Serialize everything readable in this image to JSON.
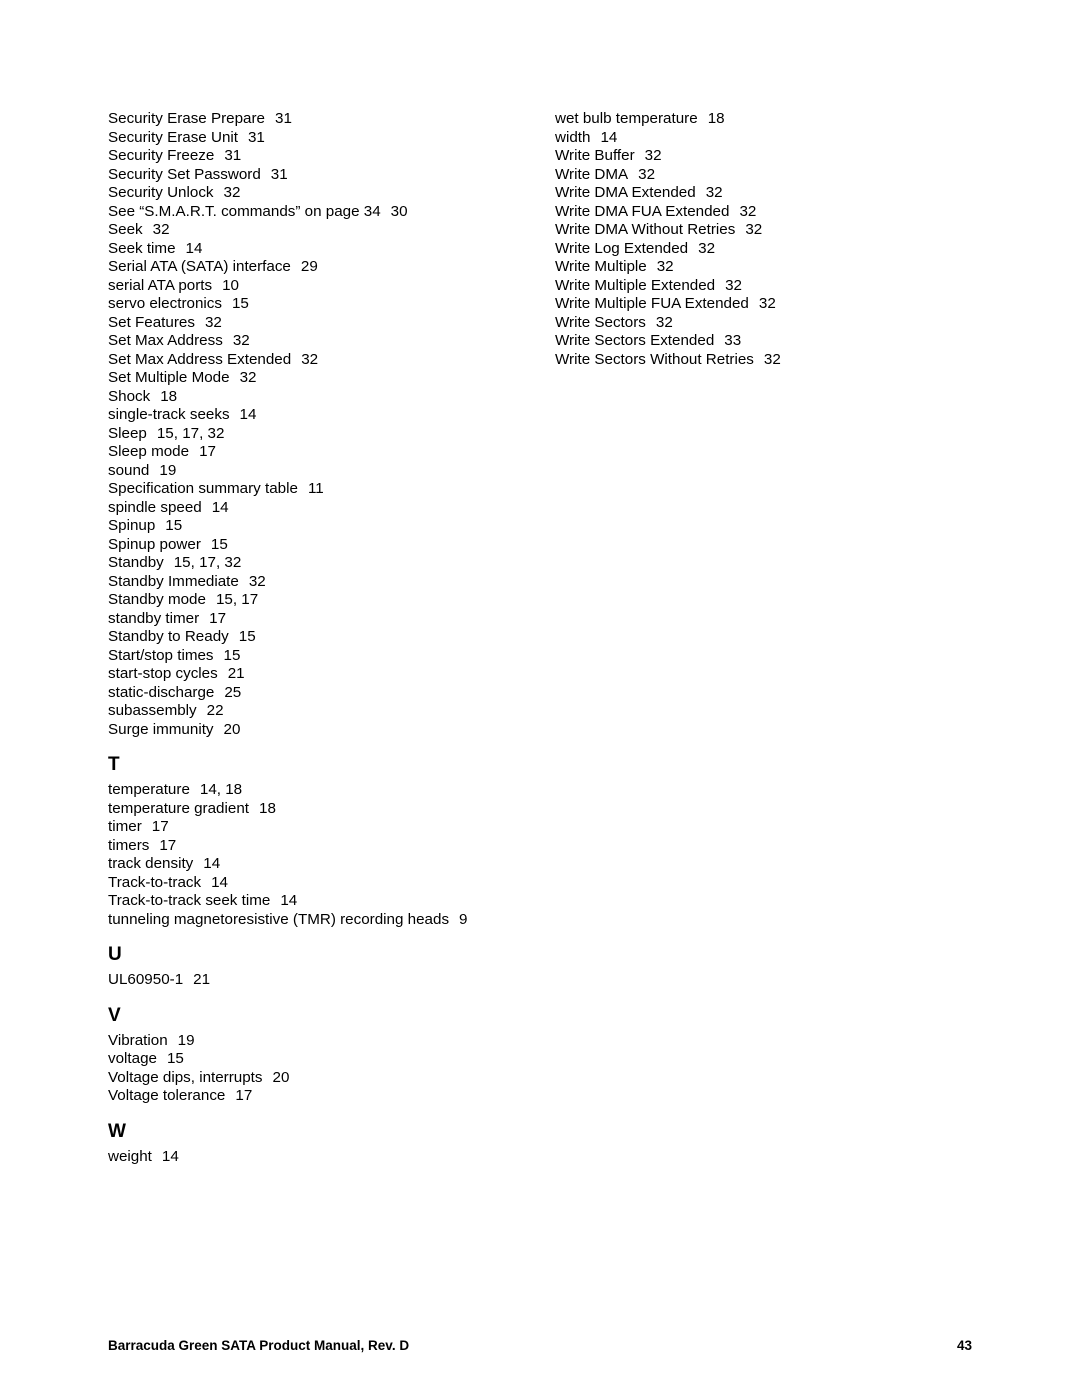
{
  "col1": {
    "s_entries": [
      {
        "term": "Security Erase Prepare",
        "pages": "31"
      },
      {
        "term": "Security Erase Unit",
        "pages": "31"
      },
      {
        "term": "Security Freeze",
        "pages": "31"
      },
      {
        "term": "Security Set Password",
        "pages": "31"
      },
      {
        "term": "Security Unlock",
        "pages": "32"
      },
      {
        "term": "See “S.M.A.R.T. commands” on page 34",
        "pages": "30"
      },
      {
        "term": "Seek",
        "pages": "32"
      },
      {
        "term": "Seek time",
        "pages": "14"
      },
      {
        "term": "Serial ATA (SATA) interface",
        "pages": "29"
      },
      {
        "term": "serial ATA ports",
        "pages": "10"
      },
      {
        "term": "servo electronics",
        "pages": "15"
      },
      {
        "term": "Set Features",
        "pages": "32"
      },
      {
        "term": "Set Max Address",
        "pages": "32"
      },
      {
        "term": "Set Max Address Extended",
        "pages": "32"
      },
      {
        "term": "Set Multiple Mode",
        "pages": "32"
      },
      {
        "term": "Shock",
        "pages": "18"
      },
      {
        "term": "single-track seeks",
        "pages": "14"
      },
      {
        "term": "Sleep",
        "pages": "15,  17,  32"
      },
      {
        "term": "Sleep mode",
        "pages": "17"
      },
      {
        "term": "sound",
        "pages": "19"
      },
      {
        "term": "Specification summary table",
        "pages": "11"
      },
      {
        "term": "spindle speed",
        "pages": "14"
      },
      {
        "term": "Spinup",
        "pages": "15"
      },
      {
        "term": "Spinup power",
        "pages": "15"
      },
      {
        "term": "Standby",
        "pages": "15,  17,  32"
      },
      {
        "term": "Standby Immediate",
        "pages": "32"
      },
      {
        "term": "Standby mode",
        "pages": "15,  17"
      },
      {
        "term": "standby timer",
        "pages": "17"
      },
      {
        "term": "Standby to Ready",
        "pages": "15"
      },
      {
        "term": "Start/stop times",
        "pages": "15"
      },
      {
        "term": "start-stop cycles",
        "pages": "21"
      },
      {
        "term": "static-discharge",
        "pages": "25"
      },
      {
        "term": "subassembly",
        "pages": "22"
      },
      {
        "term": "Surge immunity",
        "pages": "20"
      }
    ],
    "t_head": "T",
    "t_entries": [
      {
        "term": "temperature",
        "pages": "14,  18"
      },
      {
        "term": "temperature gradient",
        "pages": "18"
      },
      {
        "term": "timer",
        "pages": "17"
      },
      {
        "term": "timers",
        "pages": "17"
      },
      {
        "term": "track density",
        "pages": "14"
      },
      {
        "term": "Track-to-track",
        "pages": "14"
      },
      {
        "term": "Track-to-track seek time",
        "pages": "14"
      },
      {
        "term": "tunneling magnetoresistive (TMR) recording heads",
        "pages": "9"
      }
    ],
    "u_head": "U",
    "u_entries": [
      {
        "term": "UL60950-1",
        "pages": "21"
      }
    ],
    "v_head": "V",
    "v_entries": [
      {
        "term": "Vibration",
        "pages": "19"
      },
      {
        "term": "voltage",
        "pages": "15"
      },
      {
        "term": "Voltage dips, interrupts",
        "pages": "20"
      },
      {
        "term": "Voltage tolerance",
        "pages": "17"
      }
    ],
    "w_head": "W",
    "w_entries": [
      {
        "term": "weight",
        "pages": "14"
      }
    ]
  },
  "col2": {
    "w_entries": [
      {
        "term": "wet bulb temperature",
        "pages": "18"
      },
      {
        "term": "width",
        "pages": "14"
      },
      {
        "term": "Write Buffer",
        "pages": "32"
      },
      {
        "term": "Write DMA",
        "pages": "32"
      },
      {
        "term": "Write DMA Extended",
        "pages": "32"
      },
      {
        "term": "Write DMA FUA Extended",
        "pages": "32"
      },
      {
        "term": "Write DMA Without Retries",
        "pages": "32"
      },
      {
        "term": "Write Log Extended",
        "pages": "32"
      },
      {
        "term": "Write Multiple",
        "pages": "32"
      },
      {
        "term": "Write Multiple Extended",
        "pages": "32"
      },
      {
        "term": "Write Multiple FUA Extended",
        "pages": "32"
      },
      {
        "term": "Write Sectors",
        "pages": "32"
      },
      {
        "term": "Write Sectors Extended",
        "pages": "33"
      },
      {
        "term": "Write Sectors Without Retries",
        "pages": "32"
      }
    ]
  },
  "footer": {
    "title": "Barracuda Green SATA Product Manual, Rev. D",
    "pagenum": "43"
  }
}
